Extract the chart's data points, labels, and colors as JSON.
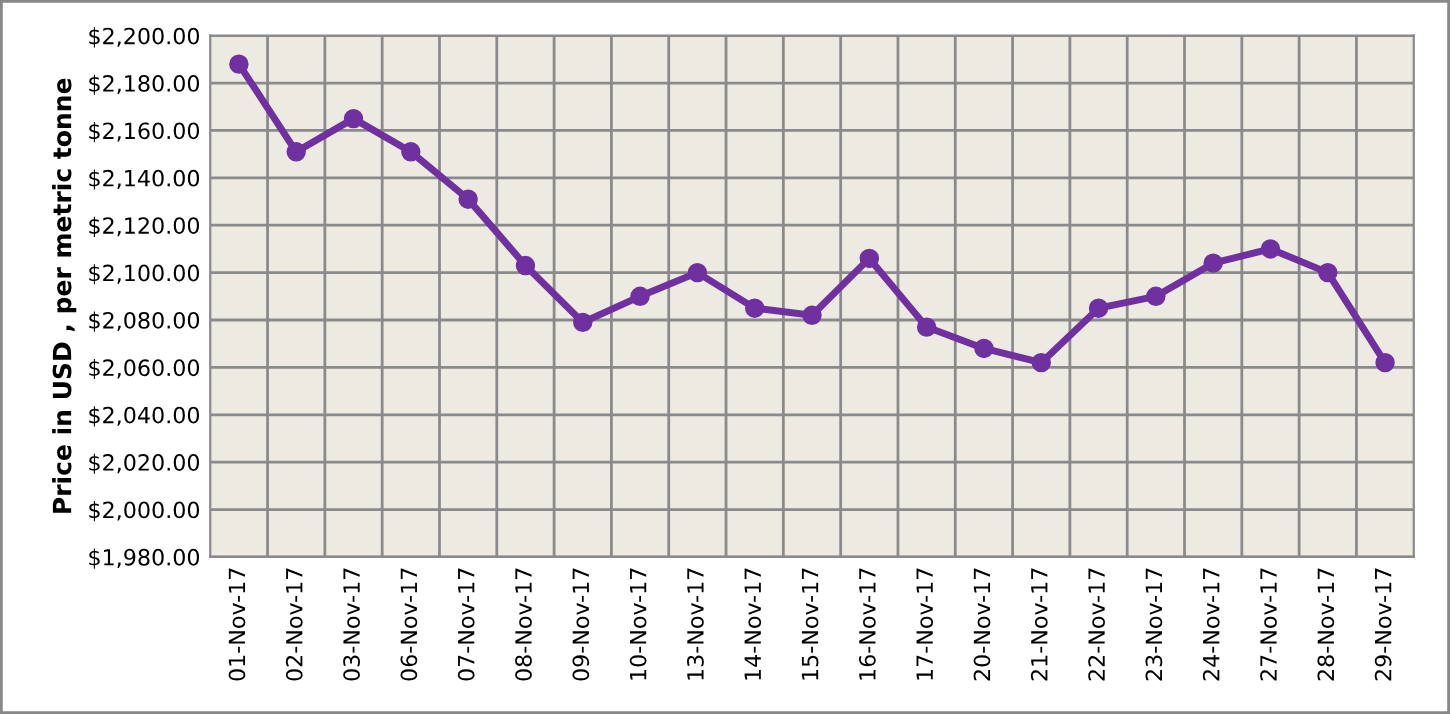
{
  "chart_data": {
    "type": "line",
    "ylabel": "Price in USD , per metric tonne",
    "categories": [
      "01-Nov-17",
      "02-Nov-17",
      "03-Nov-17",
      "06-Nov-17",
      "07-Nov-17",
      "08-Nov-17",
      "09-Nov-17",
      "10-Nov-17",
      "13-Nov-17",
      "14-Nov-17",
      "15-Nov-17",
      "16-Nov-17",
      "17-Nov-17",
      "20-Nov-17",
      "21-Nov-17",
      "22-Nov-17",
      "23-Nov-17",
      "24-Nov-17",
      "27-Nov-17",
      "28-Nov-17",
      "29-Nov-17"
    ],
    "series": [
      {
        "color": "#7030a0",
        "values": [
          2188,
          2151,
          2165,
          2151,
          2131,
          2103,
          2079,
          2090,
          2100,
          2085,
          2082,
          2106,
          2077,
          2068,
          2062,
          2085,
          2090,
          2104,
          2110,
          2100,
          2062
        ]
      }
    ],
    "ylim": [
      1980,
      2200
    ],
    "yticks": [
      {
        "value": 1980,
        "label": "$1,980.00"
      },
      {
        "value": 2000,
        "label": "$2,000.00"
      },
      {
        "value": 2020,
        "label": "$2,020.00"
      },
      {
        "value": 2040,
        "label": "$2,040.00"
      },
      {
        "value": 2060,
        "label": "$2,060.00"
      },
      {
        "value": 2080,
        "label": "$2,080.00"
      },
      {
        "value": 2100,
        "label": "$2,100.00"
      },
      {
        "value": 2120,
        "label": "$2,120.00"
      },
      {
        "value": 2140,
        "label": "$2,140.00"
      },
      {
        "value": 2160,
        "label": "$2,160.00"
      },
      {
        "value": 2180,
        "label": "$2,180.00"
      },
      {
        "value": 2200,
        "label": "$2,200.00"
      }
    ],
    "grid": true,
    "marker": "circle",
    "line_style": "solid"
  }
}
